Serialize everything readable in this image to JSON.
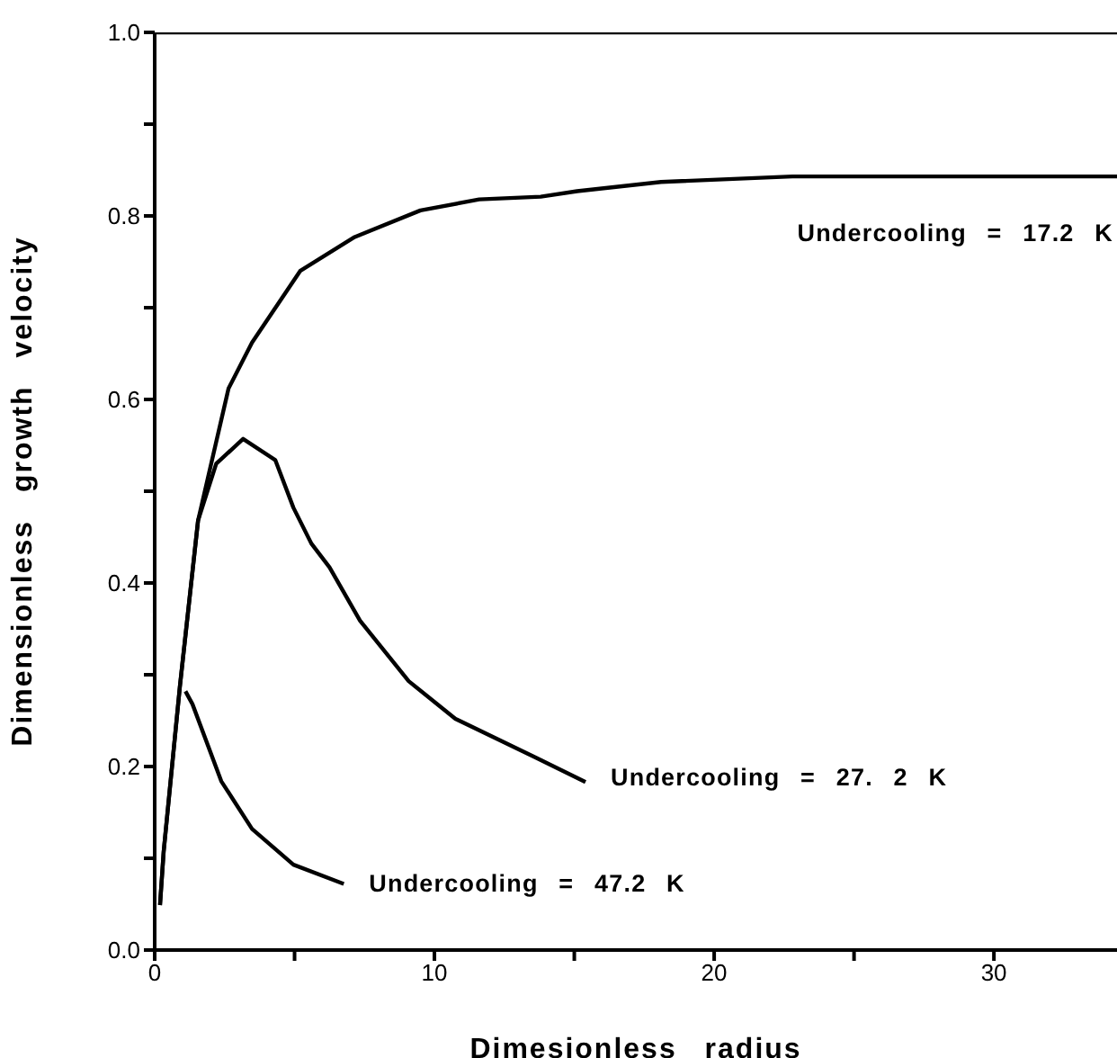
{
  "chart_data": {
    "type": "line",
    "xlabel": "Dimesionless radius",
    "ylabel": "Dimensionless growth velocity",
    "xlim": [
      0,
      34.4
    ],
    "ylim": [
      0,
      1
    ],
    "xticks": [
      0,
      {
        "value": 5,
        "label": null
      },
      10,
      {
        "value": 15,
        "label": null
      },
      20,
      {
        "value": 25,
        "label": null
      },
      30
    ],
    "yticks": [
      {
        "value": 0,
        "label": "0.0"
      },
      {
        "value": 0.1,
        "label": null
      },
      0.2,
      {
        "value": 0.3,
        "label": null
      },
      0.4,
      {
        "value": 0.5,
        "label": null
      },
      0.6,
      {
        "value": 0.7,
        "label": null
      },
      0.8,
      {
        "value": 0.9,
        "label": null
      },
      {
        "value": 1,
        "label": "1.0"
      }
    ],
    "grid": false,
    "legend": false,
    "marker": "none",
    "line_style": "solid",
    "series": [
      {
        "color": "#000000",
        "x": [
          0,
          34.4
        ],
        "values": [
          1,
          1
        ]
      },
      {
        "name": "Undercooling = 17.2 K",
        "color": "#000000",
        "x": [
          0.19,
          0.32,
          0.9,
          1.55,
          2.64,
          3.48,
          5.2,
          7.15,
          9.5,
          11.6,
          13.8,
          15.1,
          18.1,
          22.8,
          34.4
        ],
        "values": [
          0.049,
          0.107,
          0.287,
          0.468,
          0.612,
          0.662,
          0.74,
          0.777,
          0.806,
          0.818,
          0.821,
          0.827,
          0.837,
          0.843,
          0.843
        ]
      },
      {
        "name": "Undercooling = 27. 2 K",
        "color": "#000000",
        "x": [
          0.19,
          0.32,
          0.9,
          1.55,
          2.2,
          3.16,
          4.31,
          4.96,
          5.6,
          6.25,
          7.34,
          9.08,
          10.75,
          13.6,
          15.4
        ],
        "values": [
          0.049,
          0.107,
          0.287,
          0.468,
          0.53,
          0.557,
          0.534,
          0.482,
          0.443,
          0.417,
          0.359,
          0.293,
          0.252,
          0.21,
          0.183
        ]
      },
      {
        "name": "Undercooling = 47.2 K",
        "color": "#000000",
        "x": [
          1.1,
          1.35,
          2.38,
          3.48,
          4.96,
          6.76
        ],
        "values": [
          0.282,
          0.268,
          0.184,
          0.132,
          0.093,
          0.072
        ]
      }
    ]
  }
}
